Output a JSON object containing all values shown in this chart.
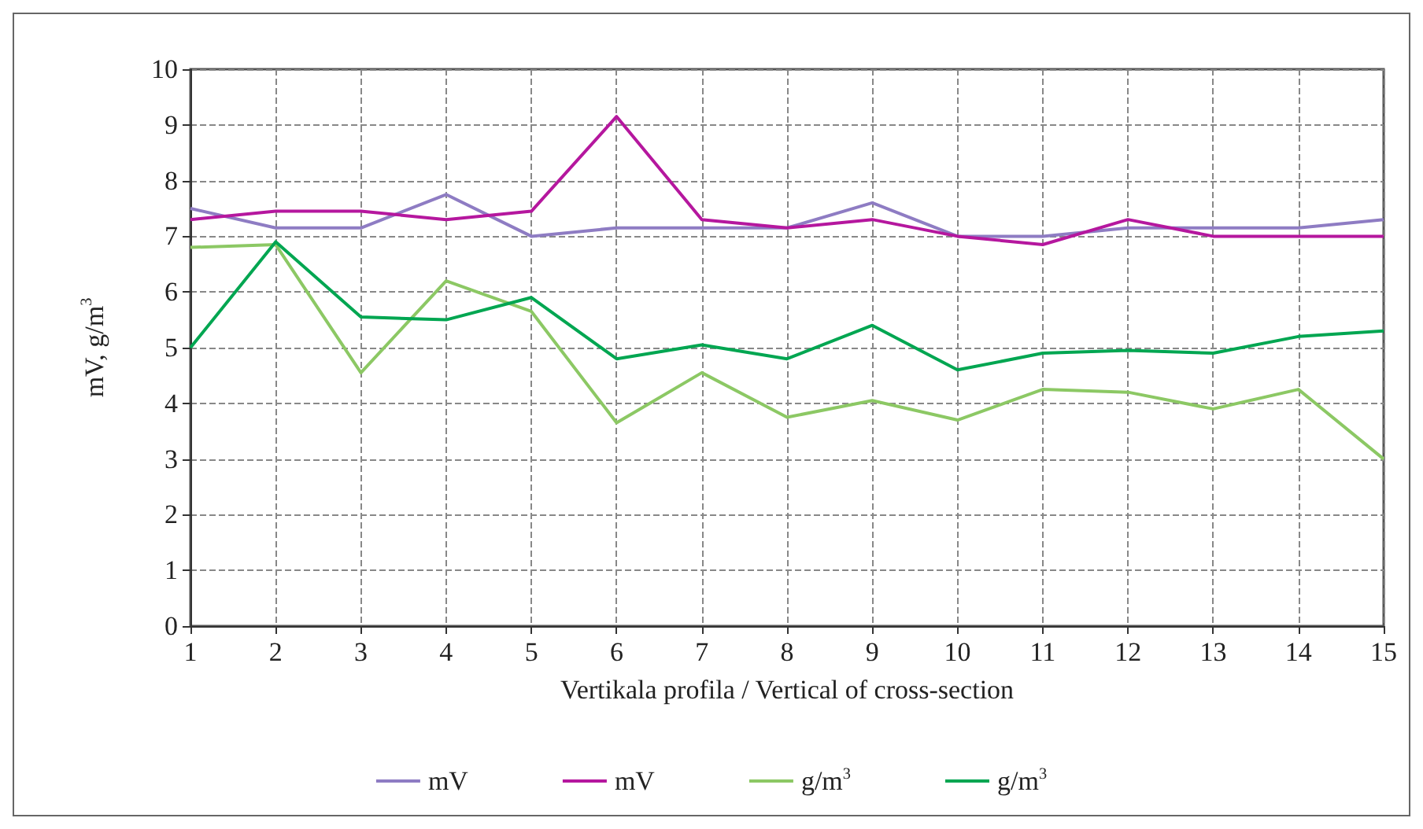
{
  "chart_data": {
    "type": "line",
    "xlabel": "Vertikala profila / Vertical of cross-section",
    "ylabel": "mV, g/m$^{3}$",
    "x": [
      1,
      2,
      3,
      4,
      5,
      6,
      7,
      8,
      9,
      10,
      11,
      12,
      13,
      14,
      15
    ],
    "xlim": [
      1,
      15
    ],
    "xticks": [
      1,
      2,
      3,
      4,
      5,
      6,
      7,
      8,
      9,
      10,
      11,
      12,
      13,
      14,
      15
    ],
    "ylim": [
      0,
      10
    ],
    "yticks": [
      0,
      1,
      2,
      3,
      4,
      5,
      6,
      7,
      8,
      9,
      10
    ],
    "grid": true,
    "legend": "bottom",
    "marker": "none",
    "line_style": "solid",
    "series": [
      {
        "name": "mV",
        "color": "#8e7cc3",
        "values": [
          7.5,
          7.15,
          7.15,
          7.75,
          7.0,
          7.15,
          7.15,
          7.15,
          7.6,
          7.0,
          7.0,
          7.15,
          7.15,
          7.15,
          7.3
        ]
      },
      {
        "name": "mV",
        "color": "#b5179e",
        "values": [
          7.3,
          7.45,
          7.45,
          7.3,
          7.45,
          9.15,
          7.3,
          7.15,
          7.3,
          7.0,
          6.85,
          7.3,
          7.0,
          7.0,
          7.0
        ]
      },
      {
        "name": "g/m$^{3}$",
        "color": "#8cc864",
        "values": [
          6.8,
          6.85,
          4.55,
          6.2,
          5.65,
          3.65,
          4.55,
          3.75,
          4.05,
          3.7,
          4.25,
          4.2,
          3.9,
          4.25,
          3.0
        ]
      },
      {
        "name": "g/m$^{3}$",
        "color": "#00a651",
        "values": [
          5.0,
          6.9,
          5.55,
          5.5,
          5.9,
          4.8,
          5.05,
          4.8,
          5.4,
          4.6,
          4.9,
          4.95,
          4.9,
          5.2,
          5.3
        ]
      }
    ]
  }
}
